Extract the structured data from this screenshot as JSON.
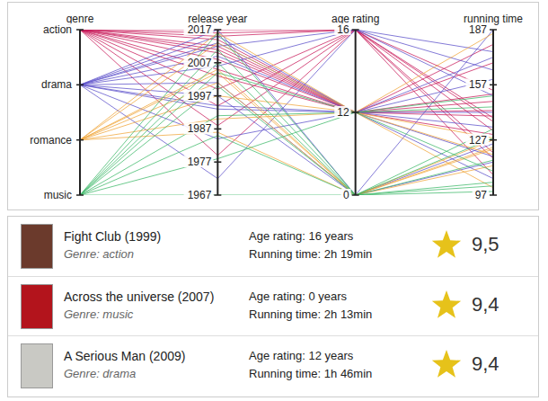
{
  "chart_data": {
    "type": "parallel_coordinates",
    "dimensions": [
      {
        "name": "genre",
        "categories": [
          "action",
          "drama",
          "romance",
          "music"
        ],
        "colors": [
          "#c8195a",
          "#5b4fc9",
          "#f0a53a",
          "#3cb868"
        ]
      },
      {
        "name": "release year",
        "ylim": [
          1967,
          2017
        ],
        "yticks": [
          1967,
          1977,
          1987,
          1997,
          2007,
          2017
        ]
      },
      {
        "name": "age rating",
        "categories": [
          16,
          12,
          0
        ]
      },
      {
        "name": "running time",
        "ylim": [
          97,
          187
        ],
        "yticks": [
          97,
          127,
          157,
          187
        ]
      }
    ],
    "rows": [
      [
        "action",
        1999,
        16,
        139
      ],
      [
        "action",
        2008,
        12,
        152
      ],
      [
        "action",
        2012,
        12,
        143
      ],
      [
        "action",
        2015,
        16,
        120
      ],
      [
        "action",
        2017,
        16,
        137
      ],
      [
        "action",
        2003,
        12,
        179
      ],
      [
        "action",
        1994,
        16,
        154
      ],
      [
        "action",
        2010,
        12,
        148
      ],
      [
        "action",
        1988,
        16,
        132
      ],
      [
        "action",
        2014,
        12,
        169
      ],
      [
        "action",
        2005,
        12,
        140
      ],
      [
        "action",
        2016,
        16,
        108
      ],
      [
        "action",
        1979,
        16,
        117
      ],
      [
        "action",
        2011,
        12,
        130
      ],
      [
        "drama",
        2009,
        12,
        106
      ],
      [
        "drama",
        1994,
        12,
        142
      ],
      [
        "drama",
        2013,
        12,
        134
      ],
      [
        "drama",
        1997,
        0,
        187
      ],
      [
        "drama",
        2006,
        16,
        151
      ],
      [
        "drama",
        1972,
        16,
        175
      ],
      [
        "drama",
        2015,
        12,
        118
      ],
      [
        "drama",
        2001,
        0,
        125
      ],
      [
        "drama",
        1984,
        12,
        160
      ],
      [
        "drama",
        2012,
        16,
        165
      ],
      [
        "drama",
        1993,
        12,
        172
      ],
      [
        "drama",
        2017,
        0,
        115
      ],
      [
        "romance",
        2001,
        0,
        122
      ],
      [
        "romance",
        1997,
        12,
        185
      ],
      [
        "romance",
        2005,
        0,
        127
      ],
      [
        "romance",
        1990,
        12,
        119
      ],
      [
        "romance",
        2013,
        12,
        101
      ],
      [
        "romance",
        2004,
        0,
        123
      ],
      [
        "romance",
        1986,
        0,
        113
      ],
      [
        "romance",
        2016,
        12,
        128
      ],
      [
        "music",
        2007,
        0,
        133
      ],
      [
        "music",
        1978,
        12,
        110
      ],
      [
        "music",
        2000,
        0,
        102
      ],
      [
        "music",
        2016,
        0,
        128
      ],
      [
        "music",
        1985,
        0,
        104
      ],
      [
        "music",
        1991,
        12,
        145
      ],
      [
        "music",
        2011,
        0,
        99
      ],
      [
        "music",
        1967,
        0,
        116
      ],
      [
        "music",
        2004,
        12,
        151
      ]
    ]
  },
  "list": [
    {
      "heading": "Fight Club  (1999)",
      "genre": "Genre: action",
      "age_rating": "Age rating: 16 years",
      "running_time": "Running time: 2h 19min",
      "score": "9,5"
    },
    {
      "heading": "Across the universe (2007)",
      "genre": "Genre: music",
      "age_rating": "Age rating: 0 years",
      "running_time": "Running time: 2h 13min",
      "score": "9,4"
    },
    {
      "heading": "A Serious Man  (2009)",
      "genre": "Genre: drama",
      "age_rating": "Age rating: 12 years",
      "running_time": "Running time: 1h 46min",
      "score": "9,4"
    }
  ]
}
